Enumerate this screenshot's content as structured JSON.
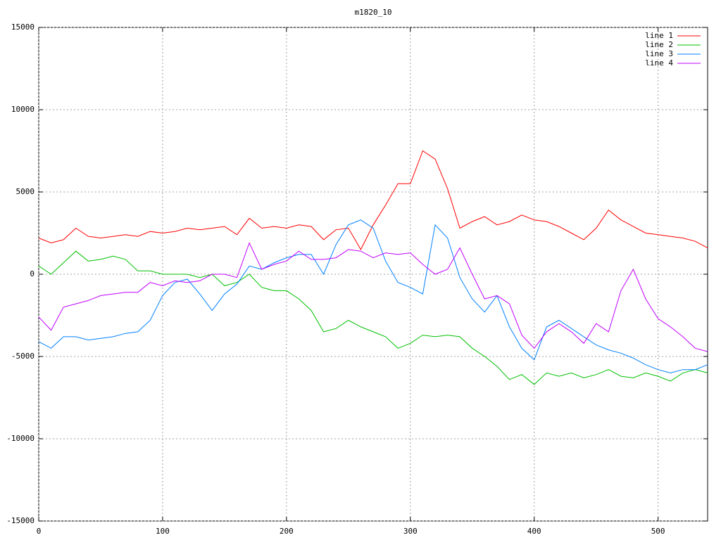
{
  "chart_data": {
    "type": "line",
    "title": "m1820_10",
    "x": [
      0,
      10,
      20,
      30,
      40,
      50,
      60,
      70,
      80,
      90,
      100,
      110,
      120,
      130,
      140,
      150,
      160,
      170,
      180,
      190,
      200,
      210,
      220,
      230,
      240,
      250,
      260,
      270,
      280,
      290,
      300,
      310,
      320,
      330,
      340,
      350,
      360,
      370,
      380,
      390,
      400,
      410,
      420,
      430,
      440,
      450,
      460,
      470,
      480,
      490,
      500,
      510,
      520,
      530,
      540
    ],
    "xlim": [
      0,
      540
    ],
    "xticks": [
      0,
      100,
      200,
      300,
      400,
      500
    ],
    "ylim": [
      -15000,
      15000
    ],
    "yticks": [
      -15000,
      -10000,
      -5000,
      0,
      5000,
      10000,
      15000
    ],
    "grid": true,
    "legend": "top-right",
    "series": [
      {
        "name": "line 1",
        "color": "#ff0000",
        "values": [
          2200,
          1900,
          2100,
          2800,
          2300,
          2200,
          2300,
          2400,
          2300,
          2600,
          2500,
          2600,
          2800,
          2700,
          2800,
          2900,
          2400,
          3400,
          2800,
          2900,
          2800,
          3000,
          2900,
          2100,
          2700,
          2800,
          1500,
          3000,
          4200,
          5500,
          5500,
          7500,
          7000,
          5200,
          2800,
          3200,
          3500,
          3000,
          3200,
          3600,
          3300,
          3200,
          2900,
          2500,
          2100,
          2800,
          3900,
          3300,
          2900,
          2500,
          2400,
          2300,
          2200,
          2000,
          1600
        ]
      },
      {
        "name": "line 2",
        "color": "#00c000",
        "values": [
          500,
          0,
          700,
          1400,
          800,
          900,
          1100,
          900,
          200,
          200,
          0,
          0,
          0,
          -200,
          0,
          -700,
          -500,
          0,
          -800,
          -1000,
          -1000,
          -1500,
          -2200,
          -3500,
          -3300,
          -2800,
          -3200,
          -3500,
          -3800,
          -4500,
          -4200,
          -3700,
          -3800,
          -3700,
          -3800,
          -4500,
          -5000,
          -5600,
          -6400,
          -6100,
          -6700,
          -6000,
          -6200,
          -6000,
          -6300,
          -6100,
          -5800,
          -6200,
          -6300,
          -6000,
          -6200,
          -6500,
          -6000,
          -5800,
          -6000
        ]
      },
      {
        "name": "line 3",
        "color": "#0080ff",
        "values": [
          -4100,
          -4500,
          -3800,
          -3800,
          -4000,
          -3900,
          -3800,
          -3600,
          -3500,
          -2800,
          -1300,
          -500,
          -300,
          -1200,
          -2200,
          -1200,
          -600,
          500,
          300,
          700,
          1000,
          1200,
          1200,
          0,
          1800,
          3000,
          3300,
          2800,
          800,
          -500,
          -800,
          -1200,
          3000,
          2200,
          -200,
          -1500,
          -2300,
          -1300,
          -3200,
          -4500,
          -5200,
          -3200,
          -2800,
          -3300,
          -3800,
          -4300,
          -4600,
          -4800,
          -5100,
          -5500,
          -5800,
          -6000,
          -5800,
          -5800,
          -5500
        ]
      },
      {
        "name": "line 4",
        "color": "#c000ff",
        "values": [
          -2600,
          -3400,
          -2000,
          -1800,
          -1600,
          -1300,
          -1200,
          -1100,
          -1100,
          -500,
          -700,
          -400,
          -500,
          -400,
          0,
          0,
          -200,
          1900,
          300,
          600,
          800,
          1400,
          900,
          900,
          1000,
          1500,
          1400,
          1000,
          1300,
          1200,
          1300,
          600,
          0,
          300,
          1600,
          0,
          -1500,
          -1300,
          -1800,
          -3700,
          -4500,
          -3500,
          -3000,
          -3500,
          -4200,
          -3000,
          -3500,
          -1000,
          300,
          -1500,
          -2700,
          -3200,
          -3800,
          -4500,
          -4700
        ]
      }
    ]
  }
}
